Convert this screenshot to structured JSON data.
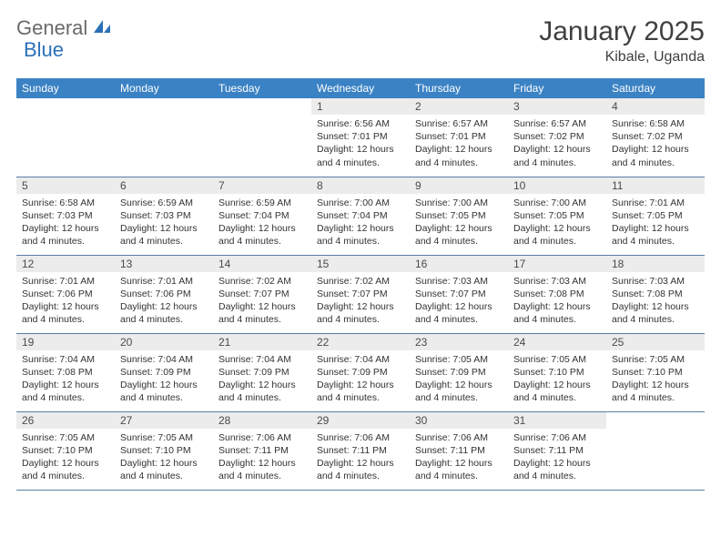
{
  "logo": {
    "text1": "General",
    "text2": "Blue"
  },
  "title": "January 2025",
  "location": "Kibale, Uganda",
  "colors": {
    "header_bg": "#3b82c4",
    "header_fg": "#ffffff",
    "daynum_bg": "#ececec",
    "row_border": "#5a7da6",
    "logo_gray": "#6a6a6a",
    "logo_blue": "#2b71b8"
  },
  "day_headers": [
    "Sunday",
    "Monday",
    "Tuesday",
    "Wednesday",
    "Thursday",
    "Friday",
    "Saturday"
  ],
  "weeks": [
    [
      {
        "n": "",
        "sr": "",
        "ss": "",
        "dl": ""
      },
      {
        "n": "",
        "sr": "",
        "ss": "",
        "dl": ""
      },
      {
        "n": "",
        "sr": "",
        "ss": "",
        "dl": ""
      },
      {
        "n": "1",
        "sr": "6:56 AM",
        "ss": "7:01 PM",
        "dl": "12 hours and 4 minutes."
      },
      {
        "n": "2",
        "sr": "6:57 AM",
        "ss": "7:01 PM",
        "dl": "12 hours and 4 minutes."
      },
      {
        "n": "3",
        "sr": "6:57 AM",
        "ss": "7:02 PM",
        "dl": "12 hours and 4 minutes."
      },
      {
        "n": "4",
        "sr": "6:58 AM",
        "ss": "7:02 PM",
        "dl": "12 hours and 4 minutes."
      }
    ],
    [
      {
        "n": "5",
        "sr": "6:58 AM",
        "ss": "7:03 PM",
        "dl": "12 hours and 4 minutes."
      },
      {
        "n": "6",
        "sr": "6:59 AM",
        "ss": "7:03 PM",
        "dl": "12 hours and 4 minutes."
      },
      {
        "n": "7",
        "sr": "6:59 AM",
        "ss": "7:04 PM",
        "dl": "12 hours and 4 minutes."
      },
      {
        "n": "8",
        "sr": "7:00 AM",
        "ss": "7:04 PM",
        "dl": "12 hours and 4 minutes."
      },
      {
        "n": "9",
        "sr": "7:00 AM",
        "ss": "7:05 PM",
        "dl": "12 hours and 4 minutes."
      },
      {
        "n": "10",
        "sr": "7:00 AM",
        "ss": "7:05 PM",
        "dl": "12 hours and 4 minutes."
      },
      {
        "n": "11",
        "sr": "7:01 AM",
        "ss": "7:05 PM",
        "dl": "12 hours and 4 minutes."
      }
    ],
    [
      {
        "n": "12",
        "sr": "7:01 AM",
        "ss": "7:06 PM",
        "dl": "12 hours and 4 minutes."
      },
      {
        "n": "13",
        "sr": "7:01 AM",
        "ss": "7:06 PM",
        "dl": "12 hours and 4 minutes."
      },
      {
        "n": "14",
        "sr": "7:02 AM",
        "ss": "7:07 PM",
        "dl": "12 hours and 4 minutes."
      },
      {
        "n": "15",
        "sr": "7:02 AM",
        "ss": "7:07 PM",
        "dl": "12 hours and 4 minutes."
      },
      {
        "n": "16",
        "sr": "7:03 AM",
        "ss": "7:07 PM",
        "dl": "12 hours and 4 minutes."
      },
      {
        "n": "17",
        "sr": "7:03 AM",
        "ss": "7:08 PM",
        "dl": "12 hours and 4 minutes."
      },
      {
        "n": "18",
        "sr": "7:03 AM",
        "ss": "7:08 PM",
        "dl": "12 hours and 4 minutes."
      }
    ],
    [
      {
        "n": "19",
        "sr": "7:04 AM",
        "ss": "7:08 PM",
        "dl": "12 hours and 4 minutes."
      },
      {
        "n": "20",
        "sr": "7:04 AM",
        "ss": "7:09 PM",
        "dl": "12 hours and 4 minutes."
      },
      {
        "n": "21",
        "sr": "7:04 AM",
        "ss": "7:09 PM",
        "dl": "12 hours and 4 minutes."
      },
      {
        "n": "22",
        "sr": "7:04 AM",
        "ss": "7:09 PM",
        "dl": "12 hours and 4 minutes."
      },
      {
        "n": "23",
        "sr": "7:05 AM",
        "ss": "7:09 PM",
        "dl": "12 hours and 4 minutes."
      },
      {
        "n": "24",
        "sr": "7:05 AM",
        "ss": "7:10 PM",
        "dl": "12 hours and 4 minutes."
      },
      {
        "n": "25",
        "sr": "7:05 AM",
        "ss": "7:10 PM",
        "dl": "12 hours and 4 minutes."
      }
    ],
    [
      {
        "n": "26",
        "sr": "7:05 AM",
        "ss": "7:10 PM",
        "dl": "12 hours and 4 minutes."
      },
      {
        "n": "27",
        "sr": "7:05 AM",
        "ss": "7:10 PM",
        "dl": "12 hours and 4 minutes."
      },
      {
        "n": "28",
        "sr": "7:06 AM",
        "ss": "7:11 PM",
        "dl": "12 hours and 4 minutes."
      },
      {
        "n": "29",
        "sr": "7:06 AM",
        "ss": "7:11 PM",
        "dl": "12 hours and 4 minutes."
      },
      {
        "n": "30",
        "sr": "7:06 AM",
        "ss": "7:11 PM",
        "dl": "12 hours and 4 minutes."
      },
      {
        "n": "31",
        "sr": "7:06 AM",
        "ss": "7:11 PM",
        "dl": "12 hours and 4 minutes."
      },
      {
        "n": "",
        "sr": "",
        "ss": "",
        "dl": ""
      }
    ]
  ],
  "labels": {
    "sunrise": "Sunrise:",
    "sunset": "Sunset:",
    "daylight": "Daylight:"
  }
}
